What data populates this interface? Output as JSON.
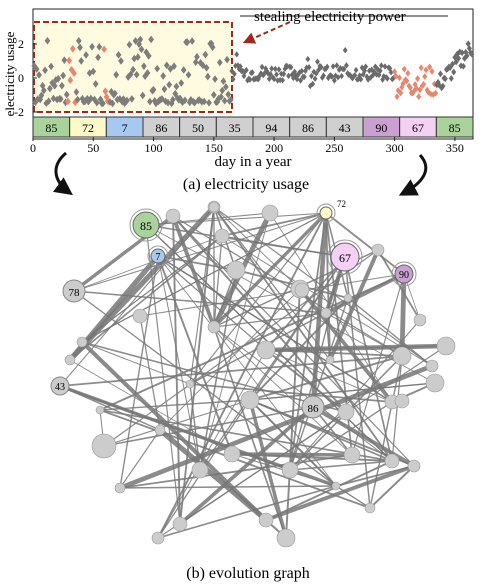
{
  "top_panel": {
    "annotation": "stealing electricity power",
    "ylabel": "electricity usage",
    "xlabel": "day in a year",
    "caption": "(a) electricity usage",
    "y_ticks": [
      "2",
      "0",
      "-2"
    ],
    "x_ticks": [
      "0",
      "50",
      "100",
      "150",
      "200",
      "250",
      "300",
      "350"
    ],
    "segments": [
      {
        "label": "85",
        "color": "#a9d39a"
      },
      {
        "label": "72",
        "color": "#fff8c8"
      },
      {
        "label": "7",
        "color": "#a8c8f0"
      },
      {
        "label": "86",
        "color": "#d0d0d0"
      },
      {
        "label": "50",
        "color": "#d0d0d0"
      },
      {
        "label": "35",
        "color": "#d0d0d0"
      },
      {
        "label": "94",
        "color": "#d0d0d0"
      },
      {
        "label": "86",
        "color": "#d0d0d0"
      },
      {
        "label": "43",
        "color": "#d0d0d0"
      },
      {
        "label": "90",
        "color": "#c9a0d0"
      },
      {
        "label": "67",
        "color": "#f5d0f5"
      },
      {
        "label": "85",
        "color": "#a9d39a"
      }
    ]
  },
  "bottom_panel": {
    "caption": "(b) evolution graph",
    "labeled_nodes": [
      {
        "label": "85",
        "color": "#a9d39a"
      },
      {
        "label": "72",
        "color": "#fff8c8"
      },
      {
        "label": "7",
        "color": "#a8c8f0"
      },
      {
        "label": "67",
        "color": "#f5d0f5"
      },
      {
        "label": "90",
        "color": "#c9a0d0"
      },
      {
        "label": "78",
        "color": "#cccccc"
      },
      {
        "label": "43",
        "color": "#cccccc"
      },
      {
        "label": "86",
        "color": "#cccccc"
      }
    ]
  },
  "colors": {
    "highlight_box": "#a0291c",
    "highlight_fill": "#fffbe0",
    "series_gray": "#7d7d7d",
    "series_anomaly": "#e8866e",
    "edge": "#777777",
    "node": "#cccccc"
  }
}
